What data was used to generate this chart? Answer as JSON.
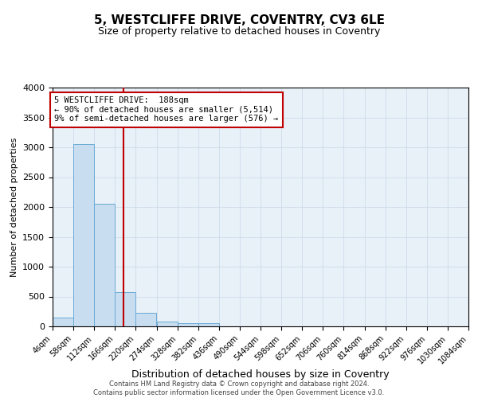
{
  "title": "5, WESTCLIFFE DRIVE, COVENTRY, CV3 6LE",
  "subtitle": "Size of property relative to detached houses in Coventry",
  "xlabel": "Distribution of detached houses by size in Coventry",
  "ylabel": "Number of detached properties",
  "footer_line1": "Contains HM Land Registry data © Crown copyright and database right 2024.",
  "footer_line2": "Contains public sector information licensed under the Open Government Licence v3.0.",
  "bin_edges": [
    4,
    58,
    112,
    166,
    220,
    274,
    328,
    382,
    436,
    490,
    544,
    598,
    652,
    706,
    760,
    814,
    868,
    922,
    976,
    1030,
    1084
  ],
  "bar_values": [
    150,
    3060,
    2060,
    570,
    230,
    80,
    55,
    55,
    0,
    0,
    0,
    0,
    0,
    0,
    0,
    0,
    0,
    0,
    0,
    0
  ],
  "bar_color": "#c9ddf0",
  "bar_edge_color": "#6aaad4",
  "property_size": 188,
  "annotation_line1": "5 WESTCLIFFE DRIVE:  188sqm",
  "annotation_line2": "← 90% of detached houses are smaller (5,514)",
  "annotation_line3": "9% of semi-detached houses are larger (576) →",
  "vline_color": "#c00000",
  "annotation_box_color": "#c00000",
  "ylim": [
    0,
    4000
  ],
  "yticks": [
    0,
    500,
    1000,
    1500,
    2000,
    2500,
    3000,
    3500,
    4000
  ],
  "grid_color": "#c8d8e8",
  "bg_color": "#e8f0f8",
  "title_fontsize": 11,
  "subtitle_fontsize": 9,
  "tick_label_fontsize": 7,
  "xlabel_fontsize": 9,
  "ylabel_fontsize": 8,
  "footer_fontsize": 6,
  "annotation_fontsize": 7.5
}
